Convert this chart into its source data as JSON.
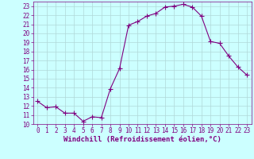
{
  "x": [
    0,
    1,
    2,
    3,
    4,
    5,
    6,
    7,
    8,
    9,
    10,
    11,
    12,
    13,
    14,
    15,
    16,
    17,
    18,
    19,
    20,
    21,
    22,
    23
  ],
  "y": [
    12.5,
    11.8,
    11.9,
    11.2,
    11.2,
    10.3,
    10.8,
    10.7,
    13.9,
    16.1,
    20.9,
    21.3,
    21.9,
    22.2,
    22.9,
    23.0,
    23.2,
    22.9,
    21.9,
    19.1,
    18.9,
    17.5,
    16.3,
    15.4
  ],
  "line_color": "#800080",
  "bg_color": "#ccffff",
  "grid_color": "#b0d8d8",
  "xlabel": "Windchill (Refroidissement éolien,°C)",
  "ylim": [
    10,
    23.5
  ],
  "xlim": [
    -0.5,
    23.5
  ],
  "yticks": [
    10,
    11,
    12,
    13,
    14,
    15,
    16,
    17,
    18,
    19,
    20,
    21,
    22,
    23
  ],
  "xticks": [
    0,
    1,
    2,
    3,
    4,
    5,
    6,
    7,
    8,
    9,
    10,
    11,
    12,
    13,
    14,
    15,
    16,
    17,
    18,
    19,
    20,
    21,
    22,
    23
  ],
  "tick_label_fontsize": 5.5,
  "xlabel_fontsize": 6.5,
  "marker_size": 2.0,
  "line_width": 0.8
}
